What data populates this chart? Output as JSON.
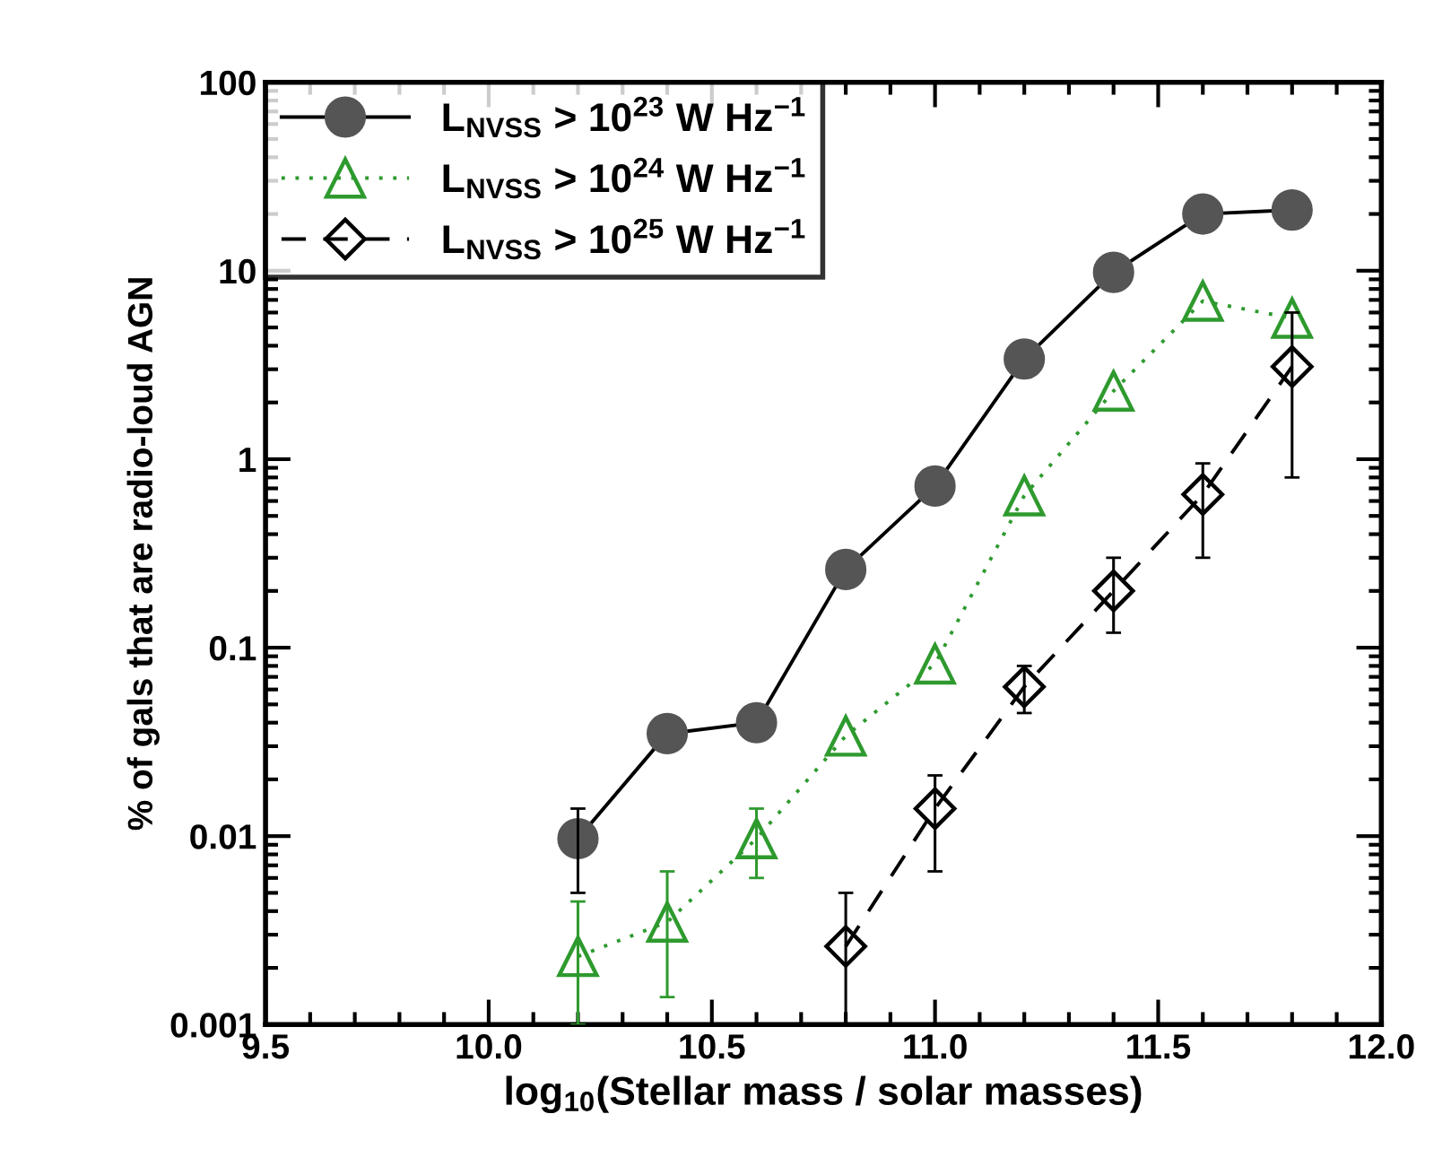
{
  "chart_data": {
    "type": "line",
    "xlabel": "log$_{10}$(Stellar mass / solar masses)",
    "ylabel": "% of gals that are radio-loud AGN",
    "log": "y",
    "xlim": [
      9.5,
      12.0
    ],
    "ylim": [
      0.001,
      100
    ],
    "xticks": [
      9.5,
      {
        "value": 10.0,
        "label": "10.0"
      },
      10.5,
      {
        "value": 11.0,
        "label": "11.0"
      },
      11.5,
      {
        "value": 12.0,
        "label": "12.0"
      }
    ],
    "yticks": [
      0.001,
      0.01,
      0.1,
      1,
      10,
      100
    ],
    "grid": false,
    "legend": "top left",
    "series": [
      {
        "name": "L$_{NVSS}$ > 10$^{23}$ W Hz$^{−1}$",
        "color": "#555555",
        "marker": "circle",
        "line_style": "solid",
        "x": [
          10.2,
          10.4,
          10.6,
          10.8,
          11.0,
          11.2,
          11.4,
          11.6,
          11.8
        ],
        "values": [
          0.0097,
          0.035,
          0.04,
          0.26,
          0.72,
          3.4,
          9.8,
          20,
          21
        ],
        "errors": [
          [
            0.005,
            0.014
          ],
          null,
          null,
          null,
          null,
          null,
          null,
          null,
          null
        ]
      },
      {
        "name": "L$_{NVSS}$ > 10$^{24}$ W Hz$^{−1}$",
        "color": "#2e9a2e",
        "marker": "triangle",
        "line_style": "dotted",
        "x": [
          10.2,
          10.4,
          10.6,
          10.8,
          11.0,
          11.2,
          11.4,
          11.6,
          11.8
        ],
        "values": [
          0.0023,
          0.0035,
          0.0097,
          0.034,
          0.082,
          0.64,
          2.3,
          6.9,
          5.6
        ],
        "errors": [
          [
            0.001,
            0.0045
          ],
          [
            0.0014,
            0.0065
          ],
          [
            0.006,
            0.014
          ],
          null,
          null,
          null,
          null,
          null,
          null
        ]
      },
      {
        "name": "L$_{NVSS}$ > 10$^{25}$ W Hz$^{−1}$",
        "color": "#000000",
        "marker": "diamond",
        "line_style": "dashed",
        "x": [
          10.8,
          11.0,
          11.2,
          11.4,
          11.6,
          11.8
        ],
        "values": [
          0.0026,
          0.014,
          0.062,
          0.2,
          0.65,
          3.1
        ],
        "errors": [
          [
            0.001,
            0.005
          ],
          [
            0.0065,
            0.021
          ],
          [
            0.045,
            0.08
          ],
          [
            0.12,
            0.3
          ],
          [
            0.3,
            0.95
          ],
          [
            0.8,
            6
          ]
        ]
      }
    ]
  }
}
